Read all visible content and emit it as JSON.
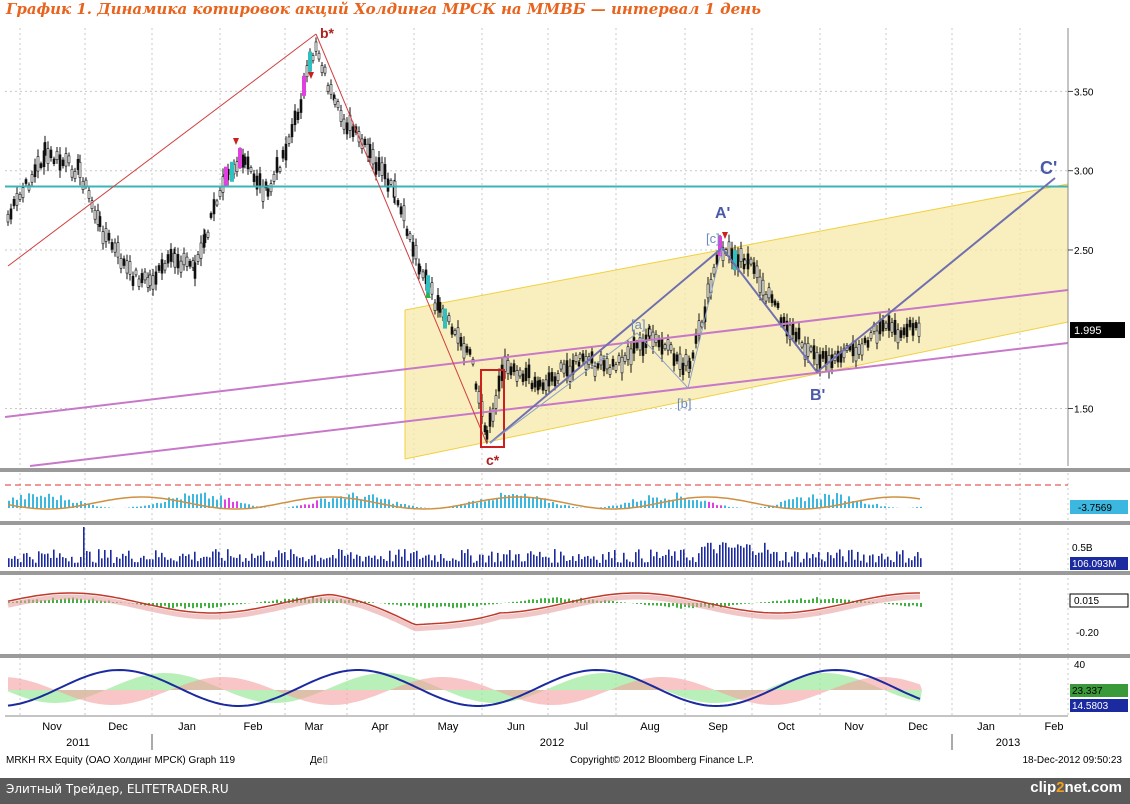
{
  "title": "График 1.   Динамика котировок акций Холдинга МРСК на ММВБ — интервал 1 день",
  "chart_data": {
    "type": "candlestick",
    "title": "График 1.   Динамика котировок акций Холдинга МРСК на ММВБ — интервал 1 день",
    "security": "MRKH RX Equity (ОАО Холдинг МРСК) Graph 119",
    "copyright": "Copyright© 2012 Bloomberg Finance L.P.",
    "timestamp": "18-Dec-2012 09:50:23",
    "footer_mark": "Де⌷",
    "x_months": [
      "Nov",
      "Dec",
      "Jan",
      "Feb",
      "Mar",
      "Apr",
      "May",
      "Jun",
      "Jul",
      "Aug",
      "Sep",
      "Oct",
      "Nov",
      "Dec",
      "Jan",
      "Feb"
    ],
    "x_years": [
      "2011",
      "2012",
      "2013"
    ],
    "price_axis": {
      "ticks": [
        "3.50",
        "3.00",
        "2.50",
        "1.50"
      ],
      "ylim": [
        1.15,
        3.9
      ]
    },
    "last_price": "1.995",
    "price_path": [
      [
        "Nov",
        2.7
      ],
      [
        "Nov",
        3.1
      ],
      [
        "Nov",
        3.0
      ],
      [
        "Dec",
        2.65
      ],
      [
        "Dec",
        2.35
      ],
      [
        "Dec",
        2.3
      ],
      [
        "Jan",
        2.45
      ],
      [
        "Jan",
        2.4
      ],
      [
        "Jan",
        2.55
      ],
      [
        "Feb",
        3.0
      ],
      [
        "Feb",
        3.05
      ],
      [
        "Feb",
        2.85
      ],
      [
        "Mar",
        3.3
      ],
      [
        "Mar",
        3.8
      ],
      [
        "Mar",
        3.4
      ],
      [
        "Apr",
        3.1
      ],
      [
        "Apr",
        2.85
      ],
      [
        "May",
        2.4
      ],
      [
        "May",
        2.1
      ],
      [
        "May",
        1.85
      ],
      [
        "Jun",
        1.35
      ],
      [
        "Jun",
        1.8
      ],
      [
        "Jun",
        1.65
      ],
      [
        "Jul",
        1.8
      ],
      [
        "Jul",
        1.75
      ],
      [
        "Aug",
        1.95
      ],
      [
        "Aug",
        1.75
      ],
      [
        "Sep",
        2.5
      ],
      [
        "Sep",
        2.45
      ],
      [
        "Oct",
        2.0
      ],
      [
        "Oct",
        1.8
      ],
      [
        "Nov",
        1.85
      ],
      [
        "Nov",
        2.0
      ],
      [
        "Dec",
        1.995
      ]
    ],
    "wave_labels": [
      "b*",
      "c*",
      "A'",
      "B'",
      "C'",
      "[a]",
      "[b]",
      "[c]"
    ],
    "levels": [
      {
        "name": "horizontal",
        "value": 2.9,
        "color": "#3cb4b4"
      }
    ],
    "channel_color": "#f7e9a8",
    "panels": [
      {
        "name": "oscillator-1",
        "value": "-3.7569",
        "color": "#3cb8e0"
      },
      {
        "name": "volume",
        "tick": "0.5B",
        "value": "106.093M",
        "color": "#1c2aa0"
      },
      {
        "name": "macd",
        "ticks": [
          "0.015",
          "-0.20"
        ],
        "value": "0.015",
        "color": "#c0392b"
      },
      {
        "name": "dmi",
        "tick": "40",
        "values": [
          "23.337",
          "14.5803"
        ],
        "colors": [
          "#3a9a3a",
          "#1c2aa0"
        ]
      }
    ]
  },
  "footer": {
    "left": "Элитный Трейдер, ELITETRADER.RU",
    "logo_main": "clip",
    "logo_num": "2",
    "logo_end": "net.com"
  }
}
